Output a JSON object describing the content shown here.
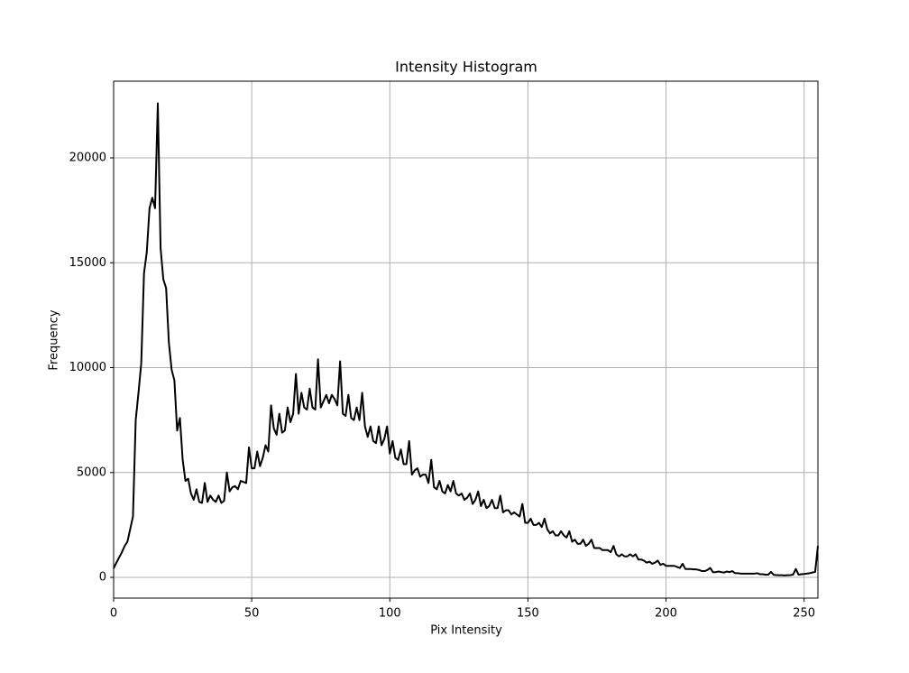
{
  "chart_data": {
    "type": "line",
    "title": "Intensity Histogram",
    "x_label": "Pix Intensity",
    "y_label": "Frequency",
    "color": "#000000",
    "grid": true,
    "xlim": [
      0,
      255
    ],
    "ylim": [
      -989,
      23656
    ],
    "xticks": [
      0,
      50,
      100,
      150,
      200,
      250
    ],
    "yticks": [
      0,
      5000,
      10000,
      15000,
      20000
    ],
    "x": [
      0,
      1,
      2,
      3,
      4,
      5,
      6,
      7,
      8,
      9,
      10,
      11,
      12,
      13,
      14,
      15,
      16,
      17,
      18,
      19,
      20,
      21,
      22,
      23,
      24,
      25,
      26,
      27,
      28,
      29,
      30,
      31,
      32,
      33,
      34,
      35,
      36,
      37,
      38,
      39,
      40,
      41,
      42,
      43,
      44,
      45,
      46,
      47,
      48,
      49,
      50,
      51,
      52,
      53,
      54,
      55,
      56,
      57,
      58,
      59,
      60,
      61,
      62,
      63,
      64,
      65,
      66,
      67,
      68,
      69,
      70,
      71,
      72,
      73,
      74,
      75,
      76,
      77,
      78,
      79,
      80,
      81,
      82,
      83,
      84,
      85,
      86,
      87,
      88,
      89,
      90,
      91,
      92,
      93,
      94,
      95,
      96,
      97,
      98,
      99,
      100,
      101,
      102,
      103,
      104,
      105,
      106,
      107,
      108,
      109,
      110,
      111,
      112,
      113,
      114,
      115,
      116,
      117,
      118,
      119,
      120,
      121,
      122,
      123,
      124,
      125,
      126,
      127,
      128,
      129,
      130,
      131,
      132,
      133,
      134,
      135,
      136,
      137,
      138,
      139,
      140,
      141,
      142,
      143,
      144,
      145,
      146,
      147,
      148,
      149,
      150,
      151,
      152,
      153,
      154,
      155,
      156,
      157,
      158,
      159,
      160,
      161,
      162,
      163,
      164,
      165,
      166,
      167,
      168,
      169,
      170,
      171,
      172,
      173,
      174,
      175,
      176,
      177,
      178,
      179,
      180,
      181,
      182,
      183,
      184,
      185,
      186,
      187,
      188,
      189,
      190,
      191,
      192,
      193,
      194,
      195,
      196,
      197,
      198,
      199,
      200,
      201,
      202,
      203,
      204,
      205,
      206,
      207,
      208,
      209,
      210,
      211,
      212,
      213,
      214,
      215,
      216,
      217,
      218,
      219,
      220,
      221,
      222,
      223,
      224,
      225,
      226,
      227,
      228,
      229,
      230,
      231,
      232,
      233,
      234,
      235,
      236,
      237,
      238,
      239,
      240,
      241,
      242,
      243,
      244,
      245,
      246,
      247,
      248,
      249,
      250,
      251,
      252,
      253,
      254,
      255
    ],
    "values": [
      430,
      700,
      950,
      1200,
      1500,
      1700,
      2300,
      2900,
      7500,
      8800,
      10200,
      14500,
      15500,
      17600,
      18100,
      17600,
      22600,
      15700,
      14200,
      13800,
      11200,
      9900,
      9400,
      7000,
      7600,
      5600,
      4600,
      4700,
      4000,
      3700,
      4200,
      3600,
      3550,
      4500,
      3600,
      3900,
      3700,
      3600,
      3900,
      3550,
      3650,
      5000,
      4100,
      4300,
      4350,
      4200,
      4600,
      4550,
      4500,
      6200,
      5200,
      5200,
      6000,
      5300,
      5700,
      6300,
      6000,
      8200,
      7100,
      6800,
      7800,
      6900,
      7000,
      8100,
      7400,
      7800,
      9700,
      7800,
      8800,
      8100,
      8000,
      9000,
      8100,
      8000,
      10400,
      8100,
      8400,
      8700,
      8300,
      8700,
      8500,
      8200,
      10300,
      7800,
      7700,
      8700,
      7600,
      7500,
      8100,
      7500,
      8800,
      7200,
      6700,
      7200,
      6500,
      6400,
      7200,
      6300,
      6600,
      7200,
      5900,
      6500,
      5700,
      5600,
      6100,
      5400,
      5400,
      6500,
      4900,
      5100,
      5200,
      4800,
      4900,
      4900,
      4500,
      5600,
      4300,
      4200,
      4600,
      4100,
      4000,
      4400,
      4100,
      4600,
      4000,
      3900,
      4000,
      3700,
      3800,
      4000,
      3500,
      3700,
      4100,
      3400,
      3700,
      3300,
      3400,
      3700,
      3300,
      3300,
      3900,
      3100,
      3200,
      3200,
      3000,
      3100,
      3000,
      2900,
      3500,
      2600,
      2600,
      2800,
      2500,
      2500,
      2600,
      2400,
      2800,
      2300,
      2100,
      2200,
      2000,
      2000,
      2200,
      2000,
      1900,
      2200,
      1700,
      1800,
      1600,
      1600,
      1800,
      1500,
      1600,
      1800,
      1400,
      1400,
      1400,
      1300,
      1300,
      1300,
      1200,
      1500,
      1100,
      1000,
      1100,
      1000,
      1000,
      1100,
      1000,
      1100,
      850,
      850,
      800,
      700,
      750,
      650,
      700,
      800,
      600,
      650,
      550,
      550,
      550,
      550,
      500,
      450,
      650,
      400,
      400,
      400,
      380,
      380,
      350,
      300,
      300,
      350,
      450,
      250,
      250,
      280,
      250,
      230,
      280,
      250,
      300,
      200,
      200,
      180,
      180,
      180,
      180,
      180,
      180,
      200,
      150,
      150,
      130,
      130,
      260,
      120,
      110,
      100,
      100,
      90,
      100,
      110,
      130,
      400,
      130,
      150,
      160,
      180,
      200,
      230,
      260,
      1500
    ]
  }
}
